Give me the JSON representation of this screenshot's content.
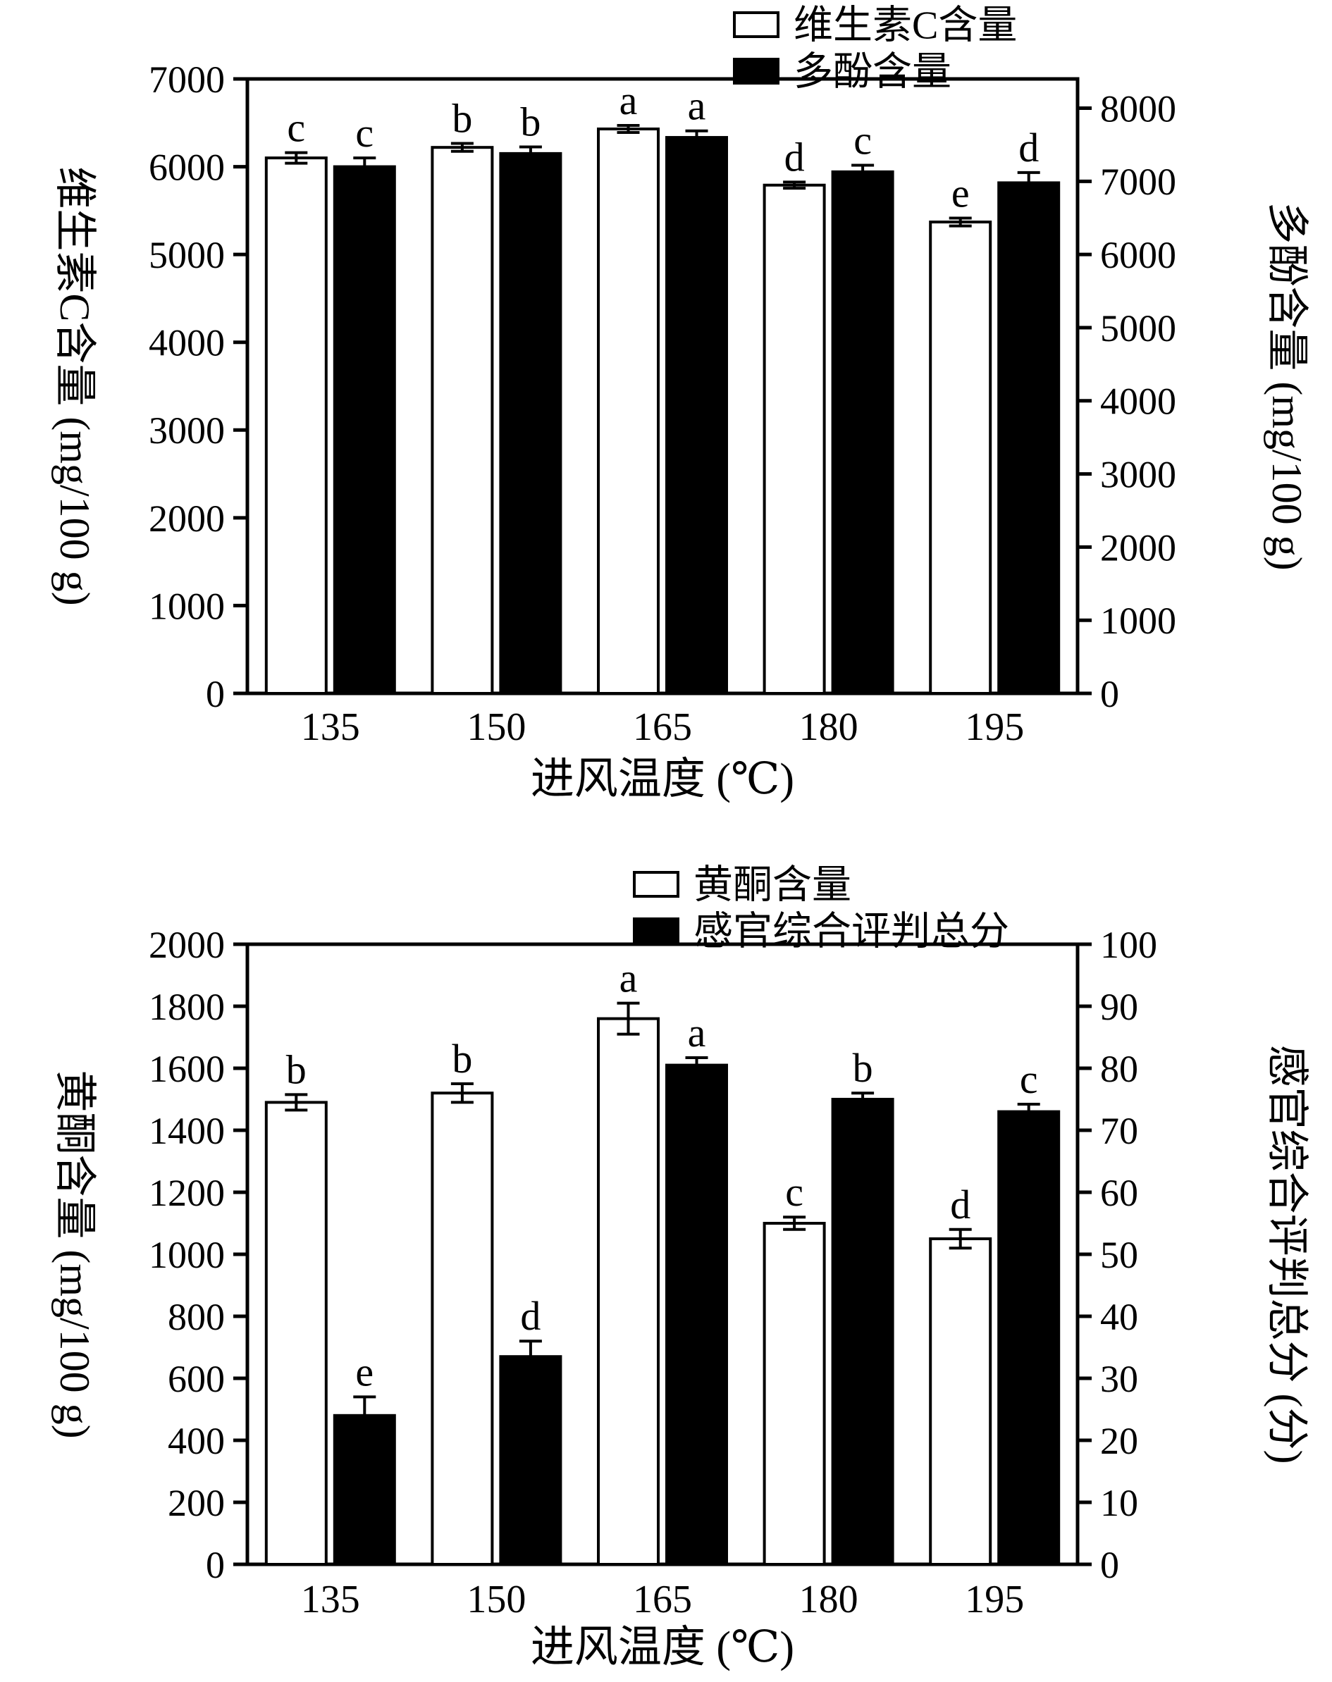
{
  "figure": {
    "background": "#ffffff",
    "axis_color": "#000000",
    "open_bar_fill": "#ffffff",
    "filled_bar_fill": "#000000"
  },
  "chart_data": [
    {
      "type": "bar",
      "categories": [
        "135",
        "150",
        "165",
        "180",
        "195"
      ],
      "xlabel": "进风温度 (℃)",
      "axes": {
        "left": {
          "label": "维生素C含量 (mg/100 g)",
          "min": 0,
          "max": 7000,
          "tick_step": 1000,
          "top_value": 7000
        },
        "right": {
          "label": "多酚含量 (mg/100 g)",
          "min": 0,
          "max": 8000,
          "tick_step": 1000,
          "top_value": 8400
        }
      },
      "legend": [
        {
          "label": "维生素C含量",
          "fill": "#ffffff"
        },
        {
          "label": "多酚含量",
          "fill": "#000000"
        }
      ],
      "series": [
        {
          "name": "维生素C含量",
          "axis": "left",
          "fill": "#ffffff",
          "values": [
            6100,
            6220,
            6430,
            5790,
            5370
          ],
          "errors": [
            60,
            45,
            40,
            35,
            45
          ],
          "letters": [
            "c",
            "b",
            "a",
            "d",
            "e"
          ]
        },
        {
          "name": "多酚含量",
          "axis": "right",
          "fill": "#000000",
          "values": [
            7200,
            7380,
            7600,
            7130,
            6980
          ],
          "errors": [
            120,
            90,
            90,
            90,
            140
          ],
          "letters": [
            "c",
            "b",
            "a",
            "c",
            "d"
          ]
        }
      ]
    },
    {
      "type": "bar",
      "categories": [
        "135",
        "150",
        "165",
        "180",
        "195"
      ],
      "xlabel": "进风温度 (℃)",
      "axes": {
        "left": {
          "label": "黄酮含量 (mg/100 g)",
          "min": 0,
          "max": 2000,
          "tick_step": 200,
          "top_value": 2000
        },
        "right": {
          "label": "感官综合评判总分 (分)",
          "min": 0,
          "max": 100,
          "tick_step": 10,
          "top_value": 100
        }
      },
      "legend": [
        {
          "label": "黄酮含量",
          "fill": "#ffffff"
        },
        {
          "label": "感官综合评判总分",
          "fill": "#000000"
        }
      ],
      "series": [
        {
          "name": "黄酮含量",
          "axis": "left",
          "fill": "#ffffff",
          "values": [
            1490,
            1520,
            1760,
            1100,
            1050
          ],
          "errors": [
            25,
            30,
            50,
            20,
            30
          ],
          "letters": [
            "b",
            "b",
            "a",
            "c",
            "d"
          ]
        },
        {
          "name": "感官综合评判总分",
          "axis": "right",
          "fill": "#000000",
          "values": [
            24,
            33.5,
            80.5,
            75,
            73
          ],
          "errors": [
            3,
            2.5,
            1.2,
            1,
            1.2
          ],
          "letters": [
            "e",
            "d",
            "a",
            "b",
            "c"
          ]
        }
      ]
    }
  ]
}
